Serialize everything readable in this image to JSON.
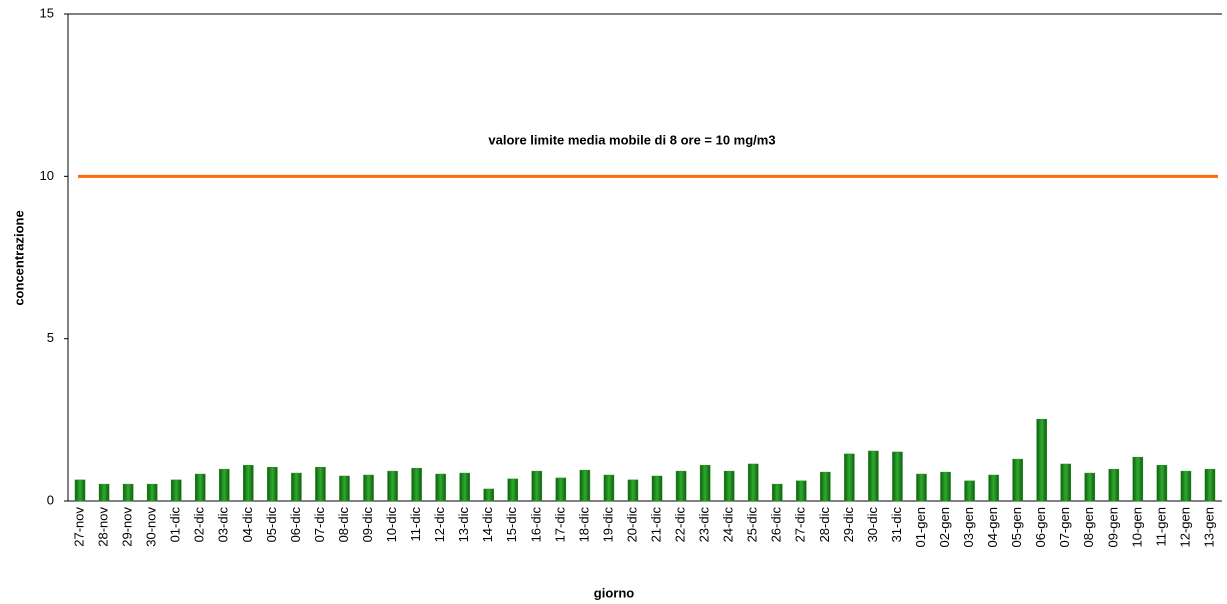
{
  "chart_data": {
    "type": "bar",
    "x_label": "giorno",
    "y_label": "concentrazione",
    "categories": [
      "27-nov",
      "28-nov",
      "29-nov",
      "30-nov",
      "01-dic",
      "02-dic",
      "03-dic",
      "04-dic",
      "05-dic",
      "06-dic",
      "07-dic",
      "08-dic",
      "09-dic",
      "10-dic",
      "11-dic",
      "12-dic",
      "13-dic",
      "14-dic",
      "15-dic",
      "16-dic",
      "17-dic",
      "18-dic",
      "19-dic",
      "20-dic",
      "21-dic",
      "22-dic",
      "23-dic",
      "24-dic",
      "25-dic",
      "26-dic",
      "27-dic",
      "28-dic",
      "29-dic",
      "30-dic",
      "31-dic",
      "01-gen",
      "02-gen",
      "03-gen",
      "04-gen",
      "05-gen",
      "06-gen",
      "07-gen",
      "08-gen",
      "09-gen",
      "10-gen",
      "11-gen",
      "12-gen",
      "13-gen"
    ],
    "values": [
      0.65,
      0.52,
      0.52,
      0.52,
      0.65,
      0.83,
      0.98,
      1.1,
      1.04,
      0.86,
      1.04,
      0.77,
      0.8,
      0.92,
      1.01,
      0.83,
      0.86,
      0.37,
      0.68,
      0.92,
      0.71,
      0.95,
      0.8,
      0.65,
      0.77,
      0.92,
      1.1,
      0.92,
      1.14,
      0.52,
      0.62,
      0.89,
      1.45,
      1.54,
      1.51,
      0.83,
      0.89,
      0.62,
      0.8,
      1.29,
      2.52,
      1.14,
      0.86,
      0.98,
      1.35,
      1.1,
      0.92,
      0.98
    ],
    "color": "#1e8c1e",
    "ylim": [
      0,
      15
    ],
    "yticks": [
      0,
      5,
      10,
      15
    ],
    "limit_line": {
      "value": 10,
      "color": "#ff6a10",
      "label": "valore limite media mobile di 8 ore = 10 mg/m3"
    }
  }
}
